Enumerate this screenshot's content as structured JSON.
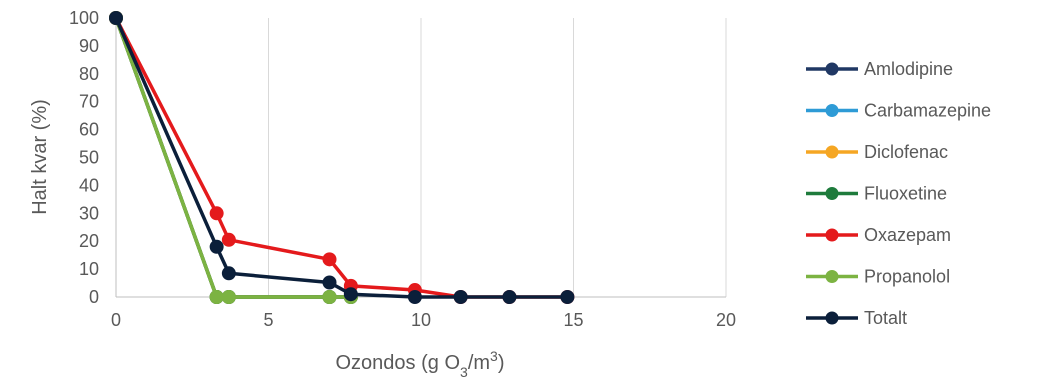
{
  "chart_data": {
    "type": "line",
    "xlabel": "Ozondos (g O3/m3)",
    "xlabel_parts": {
      "main": "Ozondos (g O",
      "sub": "3",
      "mid": "/m",
      "sup": "3",
      "end": ")"
    },
    "ylabel": "Halt kvar (%)",
    "xlim": [
      0,
      20
    ],
    "ylim": [
      0,
      100
    ],
    "x_ticks": [
      0,
      5,
      10,
      15,
      20
    ],
    "y_ticks": [
      0,
      10,
      20,
      30,
      40,
      50,
      60,
      70,
      80,
      90,
      100
    ],
    "grid": "vertical",
    "legend_position": "right",
    "series": [
      {
        "name": "Amlodipine",
        "color": "#203864",
        "points": [
          [
            0,
            100
          ],
          [
            3.3,
            0
          ],
          [
            3.7,
            0
          ],
          [
            7.0,
            0
          ],
          [
            7.7,
            0
          ]
        ]
      },
      {
        "name": "Carbamazepine",
        "color": "#2E9BD6",
        "points": [
          [
            0,
            100
          ],
          [
            3.3,
            0
          ],
          [
            3.7,
            0
          ],
          [
            7.0,
            0
          ],
          [
            7.7,
            0
          ]
        ]
      },
      {
        "name": "Diclofenac",
        "color": "#F5A623",
        "points": [
          [
            0,
            100
          ],
          [
            3.3,
            0
          ],
          [
            3.7,
            0
          ],
          [
            7.0,
            0
          ],
          [
            7.7,
            0
          ]
        ]
      },
      {
        "name": "Fluoxetine",
        "color": "#1E7B3C",
        "points": [
          [
            0,
            100
          ],
          [
            3.3,
            0
          ],
          [
            3.7,
            0
          ],
          [
            7.0,
            0
          ],
          [
            7.7,
            0
          ]
        ]
      },
      {
        "name": "Oxazepam",
        "color": "#E41A1C",
        "points": [
          [
            0,
            100
          ],
          [
            3.3,
            30
          ],
          [
            3.7,
            20.5
          ],
          [
            7.0,
            13.5
          ],
          [
            7.7,
            4
          ],
          [
            9.8,
            2.5
          ],
          [
            11.3,
            0
          ],
          [
            12.9,
            0
          ],
          [
            14.8,
            0
          ]
        ]
      },
      {
        "name": "Propanolol",
        "color": "#7CB342",
        "points": [
          [
            0,
            100
          ],
          [
            3.3,
            0
          ],
          [
            3.7,
            0
          ],
          [
            7.0,
            0
          ],
          [
            7.7,
            0
          ]
        ]
      },
      {
        "name": "Totalt",
        "color": "#0B1F3A",
        "points": [
          [
            0,
            100
          ],
          [
            3.3,
            18
          ],
          [
            3.7,
            8.5
          ],
          [
            7.0,
            5.2
          ],
          [
            7.7,
            1
          ],
          [
            9.8,
            0
          ],
          [
            11.3,
            0
          ],
          [
            12.9,
            0
          ],
          [
            14.8,
            0
          ]
        ]
      }
    ]
  }
}
